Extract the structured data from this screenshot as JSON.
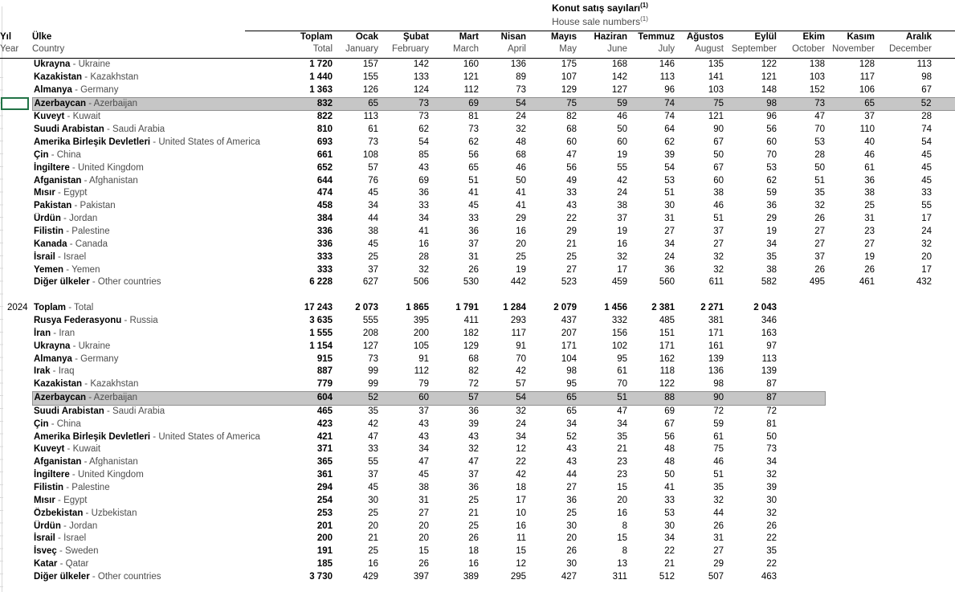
{
  "title": {
    "tr": "Konut satış sayıları",
    "en": "House sale numbers",
    "footnote": "(1)"
  },
  "row_headers": {
    "year_tr": "Yıl",
    "year_en": "Year",
    "country_tr": "Ülke",
    "country_en": "Country"
  },
  "columns": [
    {
      "tr": "Toplam",
      "en": "Total"
    },
    {
      "tr": "Ocak",
      "en": "January"
    },
    {
      "tr": "Şubat",
      "en": "February"
    },
    {
      "tr": "Mart",
      "en": "March"
    },
    {
      "tr": "Nisan",
      "en": "April"
    },
    {
      "tr": "Mayıs",
      "en": "May"
    },
    {
      "tr": "Haziran",
      "en": "June"
    },
    {
      "tr": "Temmuz",
      "en": "July"
    },
    {
      "tr": "Ağustos",
      "en": "August"
    },
    {
      "tr": "Eylül",
      "en": "September"
    },
    {
      "tr": "Ekim",
      "en": "October"
    },
    {
      "tr": "Kasım",
      "en": "November"
    },
    {
      "tr": "Aralık",
      "en": "December"
    }
  ],
  "blocks": [
    {
      "year": "",
      "rows": [
        {
          "tr": "Ukrayna",
          "en": "Ukraine",
          "values": [
            "1 720",
            "157",
            "142",
            "160",
            "136",
            "175",
            "168",
            "146",
            "135",
            "122",
            "138",
            "128",
            "113"
          ]
        },
        {
          "tr": "Kazakistan",
          "en": "Kazakhstan",
          "values": [
            "1 440",
            "155",
            "133",
            "121",
            "89",
            "107",
            "142",
            "113",
            "141",
            "121",
            "103",
            "117",
            "98"
          ]
        },
        {
          "tr": "Almanya",
          "en": "Germany",
          "values": [
            "1 363",
            "126",
            "124",
            "112",
            "73",
            "129",
            "127",
            "96",
            "103",
            "148",
            "152",
            "106",
            "67"
          ]
        },
        {
          "tr": "Azerbaycan",
          "en": "Azerbaijan",
          "highlight": true,
          "highlight_span": 13,
          "selected": true,
          "values": [
            "832",
            "65",
            "73",
            "69",
            "54",
            "75",
            "59",
            "74",
            "75",
            "98",
            "73",
            "65",
            "52"
          ]
        },
        {
          "tr": "Kuveyt",
          "en": "Kuwait",
          "values": [
            "822",
            "113",
            "73",
            "81",
            "24",
            "82",
            "46",
            "74",
            "121",
            "96",
            "47",
            "37",
            "28"
          ]
        },
        {
          "tr": "Suudi Arabistan",
          "en": "Saudi Arabia",
          "values": [
            "810",
            "61",
            "62",
            "73",
            "32",
            "68",
            "50",
            "64",
            "90",
            "56",
            "70",
            "110",
            "74"
          ]
        },
        {
          "tr": "Amerika Birleşik Devletleri",
          "en": "United States of America",
          "values": [
            "693",
            "73",
            "54",
            "62",
            "48",
            "60",
            "60",
            "62",
            "67",
            "60",
            "53",
            "40",
            "54"
          ]
        },
        {
          "tr": "Çin",
          "en": "China",
          "values": [
            "661",
            "108",
            "85",
            "56",
            "68",
            "47",
            "19",
            "39",
            "50",
            "70",
            "28",
            "46",
            "45"
          ]
        },
        {
          "tr": "İngiltere",
          "en": "United Kingdom",
          "values": [
            "652",
            "57",
            "43",
            "65",
            "46",
            "56",
            "55",
            "54",
            "67",
            "53",
            "50",
            "61",
            "45"
          ]
        },
        {
          "tr": "Afganistan",
          "en": "Afghanistan",
          "values": [
            "644",
            "76",
            "69",
            "51",
            "50",
            "49",
            "42",
            "53",
            "60",
            "62",
            "51",
            "36",
            "45"
          ]
        },
        {
          "tr": "Mısır",
          "en": "Egypt",
          "values": [
            "474",
            "45",
            "36",
            "41",
            "41",
            "33",
            "24",
            "51",
            "38",
            "59",
            "35",
            "38",
            "33"
          ]
        },
        {
          "tr": "Pakistan",
          "en": "Pakistan",
          "values": [
            "458",
            "34",
            "33",
            "45",
            "41",
            "43",
            "38",
            "30",
            "46",
            "36",
            "32",
            "25",
            "55"
          ]
        },
        {
          "tr": "Ürdün",
          "en": "Jordan",
          "values": [
            "384",
            "44",
            "34",
            "33",
            "29",
            "22",
            "37",
            "31",
            "51",
            "29",
            "26",
            "31",
            "17"
          ]
        },
        {
          "tr": "Filistin",
          "en": "Palestine",
          "values": [
            "336",
            "38",
            "41",
            "36",
            "16",
            "29",
            "19",
            "27",
            "37",
            "19",
            "27",
            "23",
            "24"
          ]
        },
        {
          "tr": "Kanada",
          "en": "Canada",
          "values": [
            "336",
            "45",
            "16",
            "37",
            "20",
            "21",
            "16",
            "34",
            "27",
            "34",
            "27",
            "27",
            "32"
          ]
        },
        {
          "tr": "İsrail",
          "en": "Israel",
          "values": [
            "333",
            "25",
            "28",
            "31",
            "25",
            "25",
            "32",
            "24",
            "32",
            "35",
            "37",
            "19",
            "20"
          ]
        },
        {
          "tr": "Yemen",
          "en": "Yemen",
          "values": [
            "333",
            "37",
            "32",
            "26",
            "19",
            "27",
            "17",
            "36",
            "32",
            "38",
            "26",
            "26",
            "17"
          ]
        },
        {
          "tr": "Diğer ülkeler",
          "en": "Other countries",
          "values": [
            "6 228",
            "627",
            "506",
            "530",
            "442",
            "523",
            "459",
            "560",
            "611",
            "582",
            "495",
            "461",
            "432"
          ]
        }
      ]
    },
    {
      "year": "2024",
      "rows": [
        {
          "tr": "Toplam",
          "en": "Total",
          "bold": true,
          "values": [
            "17 243",
            "2 073",
            "1 865",
            "1 791",
            "1 284",
            "2 079",
            "1 456",
            "2 381",
            "2 271",
            "2 043"
          ]
        },
        {
          "tr": "Rusya Federasyonu",
          "en": "Russia",
          "values": [
            "3 635",
            "555",
            "395",
            "411",
            "293",
            "437",
            "332",
            "485",
            "381",
            "346"
          ]
        },
        {
          "tr": "İran",
          "en": "Iran",
          "values": [
            "1 555",
            "208",
            "200",
            "182",
            "117",
            "207",
            "156",
            "151",
            "171",
            "163"
          ]
        },
        {
          "tr": "Ukrayna",
          "en": "Ukraine",
          "values": [
            "1 154",
            "127",
            "105",
            "129",
            "91",
            "171",
            "102",
            "171",
            "161",
            "97"
          ]
        },
        {
          "tr": "Almanya",
          "en": "Germany",
          "values": [
            "915",
            "73",
            "91",
            "68",
            "70",
            "104",
            "95",
            "162",
            "139",
            "113"
          ]
        },
        {
          "tr": "Irak",
          "en": "Iraq",
          "values": [
            "887",
            "99",
            "112",
            "82",
            "42",
            "98",
            "61",
            "118",
            "136",
            "139"
          ]
        },
        {
          "tr": "Kazakistan",
          "en": "Kazakhstan",
          "values": [
            "779",
            "99",
            "79",
            "72",
            "57",
            "95",
            "70",
            "122",
            "98",
            "87"
          ]
        },
        {
          "tr": "Azerbaycan",
          "en": "Azerbaijan",
          "highlight": true,
          "highlight_span": 11,
          "values": [
            "604",
            "52",
            "60",
            "57",
            "54",
            "65",
            "51",
            "88",
            "90",
            "87"
          ]
        },
        {
          "tr": "Suudi Arabistan",
          "en": "Saudi Arabia",
          "values": [
            "465",
            "35",
            "37",
            "36",
            "32",
            "65",
            "47",
            "69",
            "72",
            "72"
          ]
        },
        {
          "tr": "Çin",
          "en": "China",
          "values": [
            "423",
            "42",
            "43",
            "39",
            "24",
            "34",
            "34",
            "67",
            "59",
            "81"
          ]
        },
        {
          "tr": "Amerika Birleşik Devletleri",
          "en": "United States of America",
          "values": [
            "421",
            "47",
            "43",
            "43",
            "34",
            "52",
            "35",
            "56",
            "61",
            "50"
          ]
        },
        {
          "tr": "Kuveyt",
          "en": "Kuwait",
          "values": [
            "371",
            "33",
            "34",
            "32",
            "12",
            "43",
            "21",
            "48",
            "75",
            "73"
          ]
        },
        {
          "tr": "Afganistan",
          "en": "Afghanistan",
          "values": [
            "365",
            "55",
            "47",
            "47",
            "22",
            "43",
            "23",
            "48",
            "46",
            "34"
          ]
        },
        {
          "tr": "İngiltere",
          "en": "United Kingdom",
          "values": [
            "361",
            "37",
            "45",
            "37",
            "42",
            "44",
            "23",
            "50",
            "51",
            "32"
          ]
        },
        {
          "tr": "Filistin",
          "en": "Palestine",
          "values": [
            "294",
            "45",
            "38",
            "36",
            "18",
            "27",
            "15",
            "41",
            "35",
            "39"
          ]
        },
        {
          "tr": "Mısır",
          "en": "Egypt",
          "values": [
            "254",
            "30",
            "31",
            "25",
            "17",
            "36",
            "20",
            "33",
            "32",
            "30"
          ]
        },
        {
          "tr": "Özbekistan",
          "en": "Uzbekistan",
          "values": [
            "253",
            "25",
            "27",
            "21",
            "10",
            "25",
            "16",
            "53",
            "44",
            "32"
          ]
        },
        {
          "tr": "Ürdün",
          "en": "Jordan",
          "values": [
            "201",
            "20",
            "20",
            "25",
            "16",
            "30",
            "8",
            "30",
            "26",
            "26"
          ]
        },
        {
          "tr": "İsrail",
          "en": "İsrael",
          "values": [
            "200",
            "21",
            "20",
            "26",
            "11",
            "20",
            "15",
            "34",
            "31",
            "22"
          ]
        },
        {
          "tr": "İsveç",
          "en": "Sweden",
          "values": [
            "191",
            "25",
            "15",
            "18",
            "15",
            "26",
            "8",
            "22",
            "27",
            "35"
          ]
        },
        {
          "tr": "Katar",
          "en": "Qatar",
          "values": [
            "185",
            "16",
            "26",
            "16",
            "12",
            "30",
            "13",
            "21",
            "29",
            "22"
          ]
        },
        {
          "tr": "Diğer ülkeler",
          "en": "Other countries",
          "values": [
            "3 730",
            "429",
            "397",
            "389",
            "295",
            "427",
            "311",
            "512",
            "507",
            "463"
          ]
        }
      ]
    }
  ],
  "colors": {
    "highlight_bg": "#c6c6c6",
    "highlight_border": "#8f8f8f",
    "selection_border": "#217346",
    "gridline": "#d9d9d9",
    "english_text": "#4d4d4d"
  }
}
